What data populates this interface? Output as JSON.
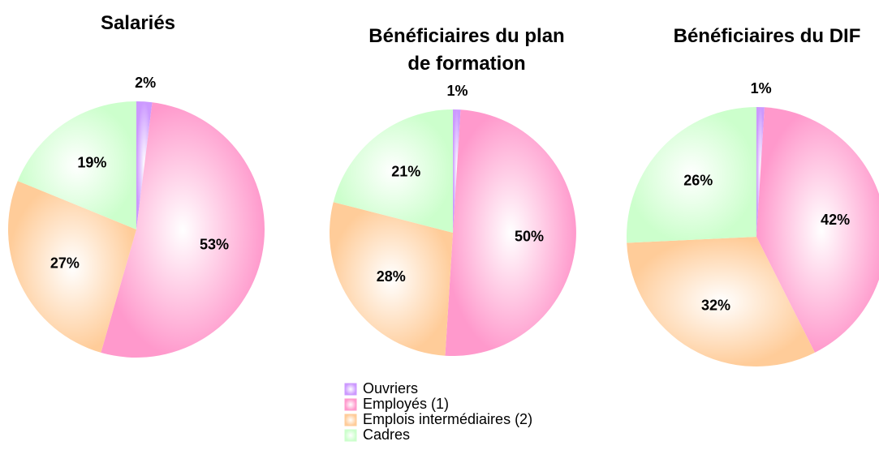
{
  "chart_data": [
    {
      "type": "pie",
      "title": "Salariés",
      "values": [
        2,
        53,
        27,
        19
      ],
      "value_labels": [
        "2%",
        "53%",
        "27%",
        "19%"
      ]
    },
    {
      "type": "pie",
      "title": "Bénéficiaires du plan de formation",
      "values": [
        1,
        50,
        28,
        21
      ],
      "value_labels": [
        "1%",
        "50%",
        "28%",
        "21%"
      ]
    },
    {
      "type": "pie",
      "title": "Bénéficiaires du DIF",
      "values": [
        1,
        42,
        32,
        26
      ],
      "value_labels": [
        "1%",
        "42%",
        "32%",
        "26%"
      ]
    }
  ],
  "legend": {
    "items": [
      "Ouvriers",
      "Employés (1)",
      "Emplois intermédiaires (2)",
      "Cadres"
    ],
    "colors": [
      "#cc99ff",
      "#ff99cc",
      "#ffcc99",
      "#ccffcc"
    ]
  }
}
